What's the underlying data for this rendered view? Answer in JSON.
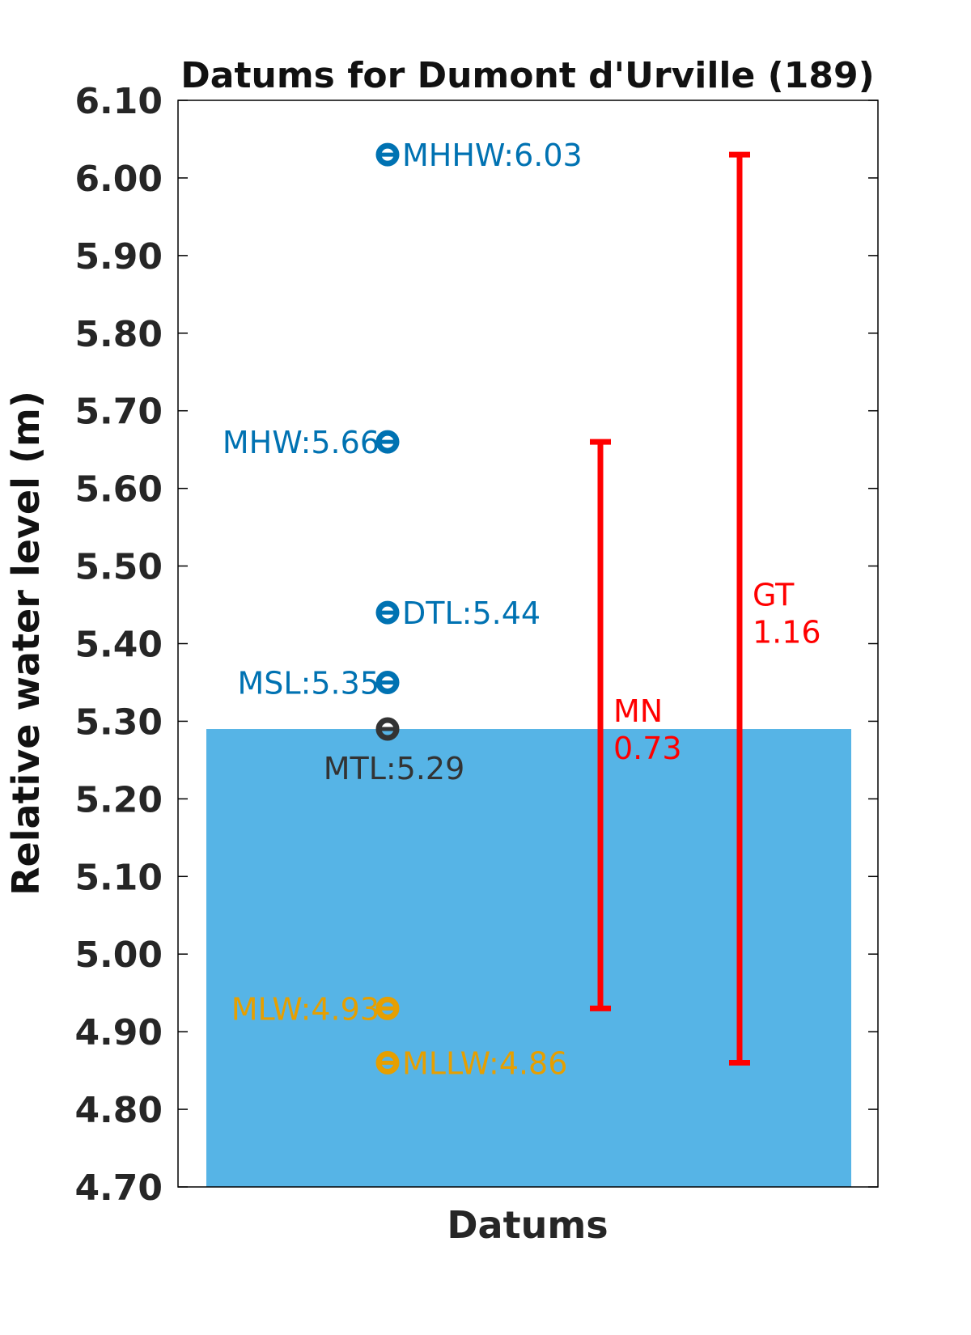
{
  "chart_data": {
    "type": "scatter",
    "title": "Datums for Dumont d'Urville (189)",
    "xlabel": "Datums",
    "ylabel": "Relative water level (m)",
    "ylim": [
      4.7,
      6.1
    ],
    "yticks": [
      "4.70",
      "4.80",
      "4.90",
      "5.00",
      "5.10",
      "5.20",
      "5.30",
      "5.40",
      "5.50",
      "5.60",
      "5.70",
      "5.80",
      "5.90",
      "6.00",
      "6.10"
    ],
    "grid": false,
    "fill": {
      "from": 4.7,
      "to": 5.29,
      "color": "#56b4e6"
    },
    "datums": [
      {
        "name": "MHHW",
        "value": 6.03,
        "label": "MHHW:6.03",
        "color": "#0072b2",
        "label_side": "right"
      },
      {
        "name": "MHW",
        "value": 5.66,
        "label": "MHW:5.66",
        "color": "#0072b2",
        "label_side": "left"
      },
      {
        "name": "DTL",
        "value": 5.44,
        "label": "DTL:5.44",
        "color": "#0072b2",
        "label_side": "right"
      },
      {
        "name": "MSL",
        "value": 5.35,
        "label": "MSL:5.35",
        "color": "#0072b2",
        "label_side": "left"
      },
      {
        "name": "MTL",
        "value": 5.29,
        "label": "MTL:5.29",
        "color": "#333333",
        "label_side": "below"
      },
      {
        "name": "MLW",
        "value": 4.93,
        "label": "MLW:4.93",
        "color": "#e69f00",
        "label_side": "left"
      },
      {
        "name": "MLLW",
        "value": 4.86,
        "label": "MLLW:4.86",
        "color": "#e69f00",
        "label_side": "right"
      }
    ],
    "ranges": [
      {
        "name": "MN",
        "value_text": "0.73",
        "low": 4.93,
        "high": 5.66,
        "color": "#ff0000"
      },
      {
        "name": "GT",
        "value_text": "1.16",
        "low": 4.86,
        "high": 6.03,
        "color": "#ff0000"
      }
    ]
  }
}
